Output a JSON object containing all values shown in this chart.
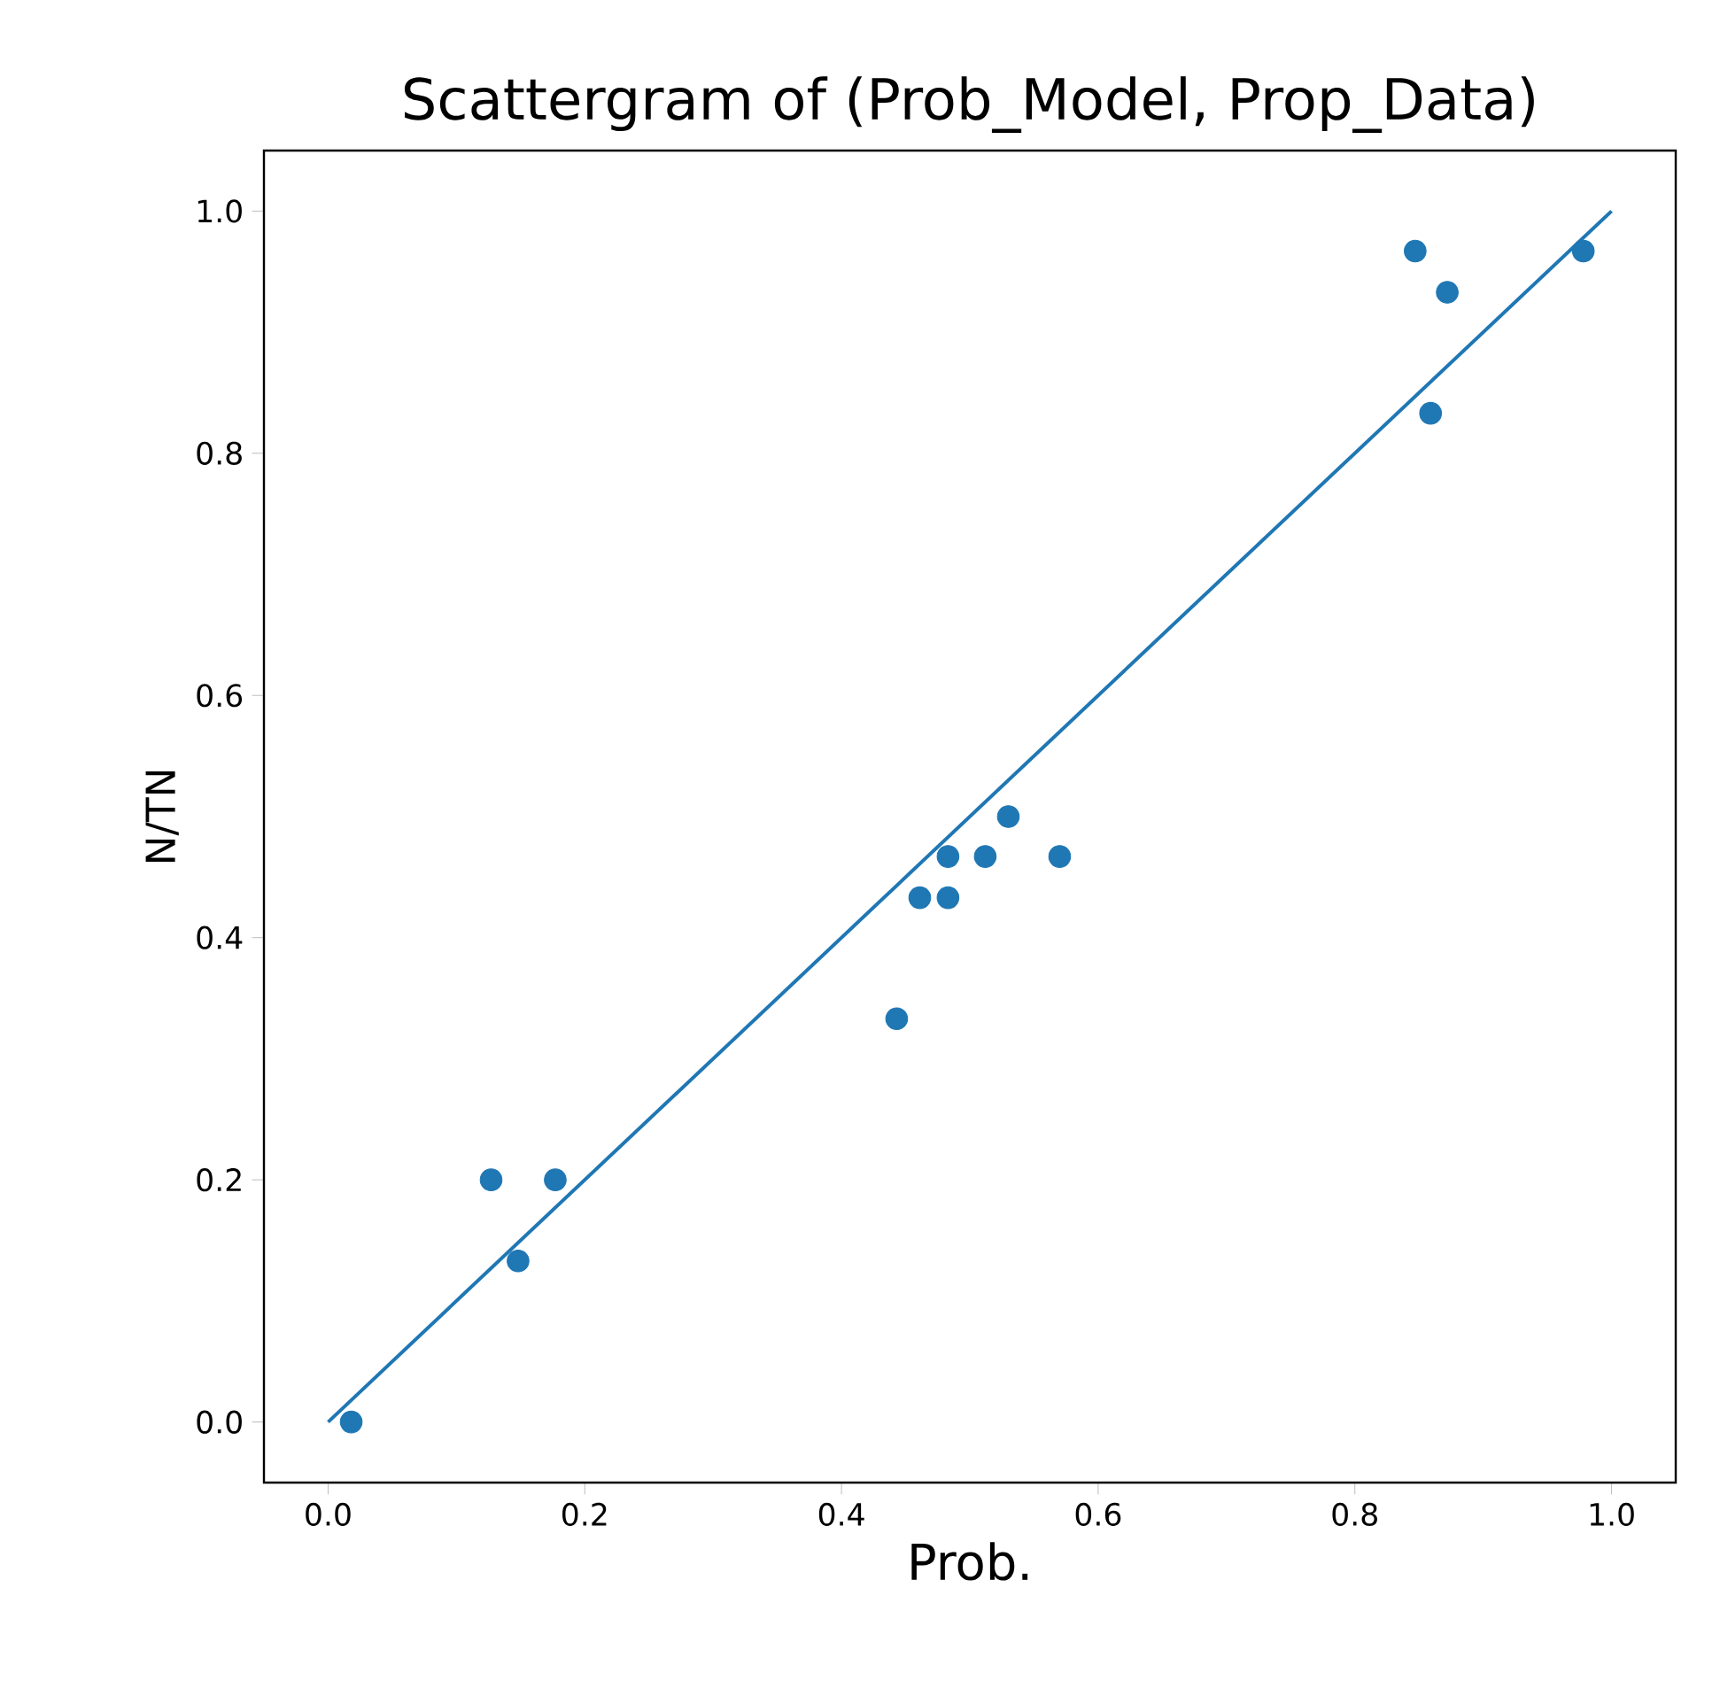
{
  "chart_data": {
    "type": "scatter",
    "title": "Scattergram of (Prob_Model, Prop_Data)",
    "xlabel": "Prob.",
    "ylabel": "N/TN",
    "xlim": [
      -0.05,
      1.05
    ],
    "ylim": [
      -0.05,
      1.05
    ],
    "xticks": [
      {
        "value": 0,
        "label": "0.0"
      },
      {
        "value": 0.2,
        "label": "0.2"
      },
      {
        "value": 0.4,
        "label": "0.4"
      },
      {
        "value": 0.6,
        "label": "0.6"
      },
      {
        "value": 0.8,
        "label": "0.8"
      },
      {
        "value": 1,
        "label": "1.0"
      }
    ],
    "yticks": [
      {
        "value": 0,
        "label": "0.0"
      },
      {
        "value": 0.2,
        "label": "0.2"
      },
      {
        "value": 0.4,
        "label": "0.4"
      },
      {
        "value": 0.6,
        "label": "0.6"
      },
      {
        "value": 0.8,
        "label": "0.8"
      },
      {
        "value": 1,
        "label": "1.0"
      }
    ],
    "grid": false,
    "series": [
      {
        "color": "#1f77b4",
        "marker": "circle",
        "x": [
          0.018,
          0.127,
          0.148,
          0.177,
          0.443,
          0.461,
          0.483,
          0.483,
          0.512,
          0.53,
          0.57,
          0.847,
          0.859,
          0.872,
          0.978
        ],
        "values": [
          0.0,
          0.2,
          0.133,
          0.2,
          0.333,
          0.433,
          0.467,
          0.433,
          0.467,
          0.5,
          0.467,
          0.967,
          0.833,
          0.933,
          0.967
        ]
      },
      {
        "type": "line",
        "color": "#1f77b4",
        "marker": "none",
        "line_style": "solid",
        "x": [
          0,
          1
        ],
        "values": [
          0,
          1
        ]
      }
    ]
  }
}
